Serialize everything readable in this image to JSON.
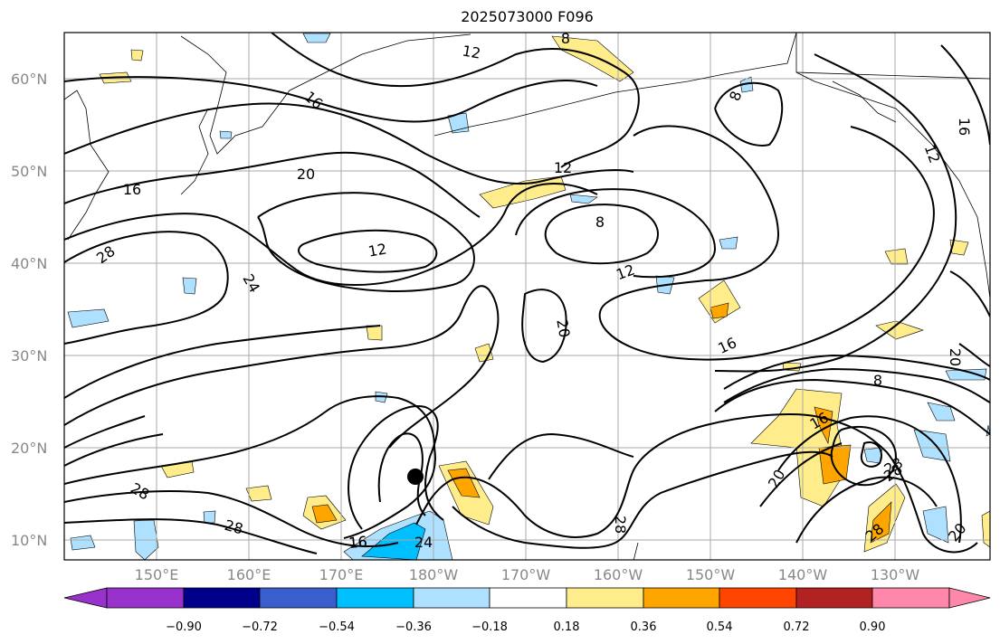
{
  "title": "2025073000 F096",
  "lat_labels": [
    "60°N",
    "50°N",
    "40°N",
    "30°N",
    "20°N",
    "10°N"
  ],
  "lon_labels": [
    "150°E",
    "160°E",
    "170°E",
    "180°W",
    "170°W",
    "160°W",
    "150°W",
    "140°W",
    "130°W"
  ],
  "contour_labels": [
    "12",
    "16",
    "8",
    "8",
    "16",
    "20",
    "12",
    "16",
    "12",
    "8",
    "28",
    "12",
    "24",
    "12",
    "20",
    "16",
    "20",
    "8",
    "16",
    "28",
    "20",
    "28",
    "28",
    "28",
    "16",
    "24",
    "28",
    "28",
    "20",
    "16"
  ],
  "colorbar": {
    "ticks": [
      "−0.90",
      "−0.72",
      "−0.54",
      "−0.36",
      "−0.18",
      "0.18",
      "0.36",
      "0.54",
      "0.72",
      "0.90"
    ],
    "colors": [
      "#9932cc",
      "#00008b",
      "#3a5fcd",
      "#00bfff",
      "#aee0ff",
      "#ffffff",
      "#ffec8b",
      "#ffa500",
      "#ff4500",
      "#b22222",
      "#ff88aa"
    ],
    "extend": "both"
  },
  "storm_marker": {
    "lat": 17,
    "lon": -178.5
  }
}
